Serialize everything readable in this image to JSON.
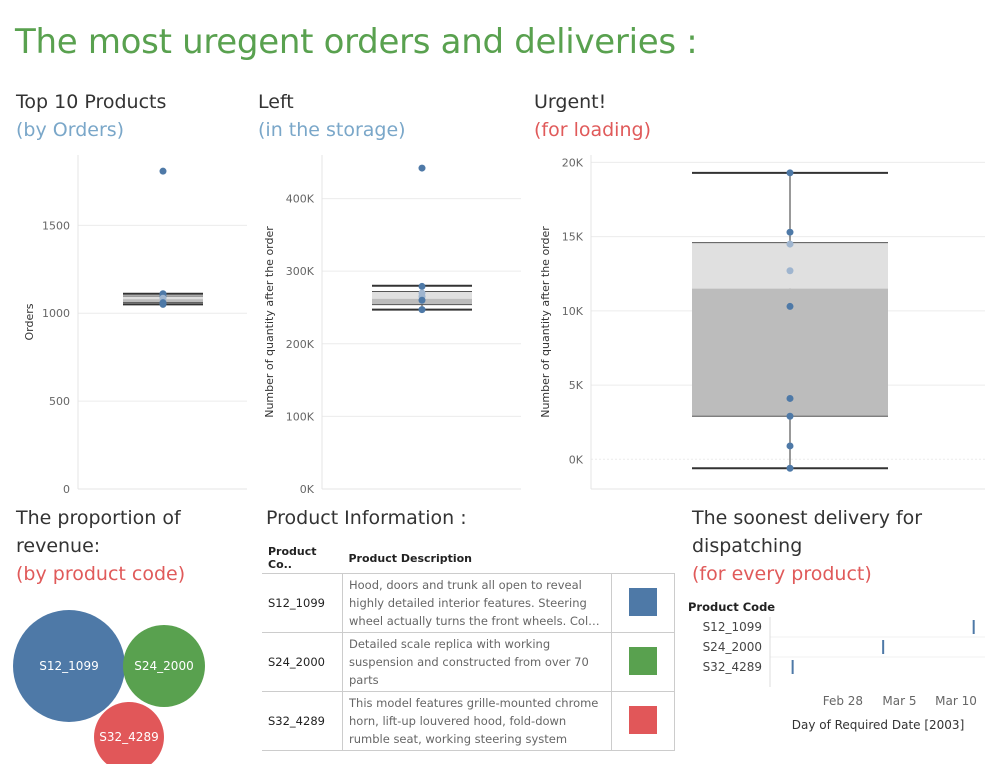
{
  "title": "The most uregent orders and deliveries :",
  "sections": {
    "top10": {
      "title": "Top 10 Products",
      "subtitle": "(by Orders)"
    },
    "left": {
      "title": "Left",
      "subtitle": "(in the storage)"
    },
    "urgent": {
      "title": "Urgent!",
      "subtitle": "(for loading)"
    },
    "proportion": {
      "title_line1": "The proportion of",
      "title_line2": "revenue:",
      "subtitle": "(by product code)"
    },
    "info": {
      "title": "Product Information :"
    },
    "soonest": {
      "title_line1": "The soonest delivery for",
      "title_line2": "dispatching",
      "subtitle": "(for every product)"
    }
  },
  "colors": {
    "title_green": "#59a14f",
    "sub_blue": "#7aa7c9",
    "sub_red": "#e05a5a",
    "point": "#4e79a7",
    "point_light": "#9fb5cf",
    "box_light": "#e0e0e0",
    "box_dark": "#bcbcbc"
  },
  "chart_data": [
    {
      "type": "box-plot",
      "name": "Top 10 Products (by Orders)",
      "ylabel": "Orders",
      "yticks": [
        "0",
        "500",
        "1000",
        "1500"
      ],
      "ylim": [
        0,
        1900
      ],
      "points": [
        1808,
        1111,
        1098,
        1085,
        1060,
        1050
      ],
      "box": {
        "min": 1050,
        "q1": 1060,
        "median": 1080,
        "q3": 1098,
        "max": 1111
      }
    },
    {
      "type": "box-plot",
      "name": "Left (in the storage)",
      "ylabel": "Number of quantity after the order",
      "yticks": [
        "0K",
        "100K",
        "200K",
        "300K",
        "400K"
      ],
      "ylim": [
        0,
        460000
      ],
      "points": [
        442000,
        279000,
        270000,
        265000,
        260000,
        247000
      ],
      "box": {
        "min": 247000,
        "q1": 254000,
        "median": 262000,
        "q3": 272000,
        "max": 280000
      }
    },
    {
      "type": "box-plot",
      "name": "Urgent! (for loading)",
      "ylabel": "Number of quantity after the order",
      "yticks": [
        "0K",
        "5K",
        "10K",
        "15K",
        "20K"
      ],
      "ylim": [
        -2000,
        20500
      ],
      "points": [
        19300,
        15300,
        14500,
        12700,
        10300,
        4100,
        2900,
        900,
        -600
      ],
      "box": {
        "min": -600,
        "q1": 2900,
        "median": 11500,
        "q3": 14600,
        "max": 19300
      }
    },
    {
      "type": "bubble",
      "name": "The proportion of revenue (by product code)",
      "bubbles": [
        {
          "label": "S12_1099",
          "color": "#4e79a7"
        },
        {
          "label": "S24_2000",
          "color": "#59a14f"
        },
        {
          "label": "S32_4289",
          "color": "#e15759"
        }
      ]
    },
    {
      "type": "gantt",
      "name": "The soonest delivery for dispatching",
      "y_header": "Product Code",
      "xlabel": "Day of Required Date [2003]",
      "xticks": [
        "Feb 28",
        "Mar 5",
        "Mar 10"
      ],
      "rows": [
        {
          "label": "S12_1099",
          "date": "2003-03-12"
        },
        {
          "label": "S24_2000",
          "date": "2003-03-04"
        },
        {
          "label": "S32_4289",
          "date": "2003-02-24"
        }
      ]
    }
  ],
  "product_table": {
    "headers": [
      "Product Co..",
      "Product Description"
    ],
    "rows": [
      {
        "code": "S12_1099",
        "desc": "Hood, doors and trunk all open to reveal highly detailed interior features. Steering wheel actually turns the front wheels. Color dark gr..",
        "color": "#4e79a7"
      },
      {
        "code": "S24_2000",
        "desc": "Detailed scale replica with working suspension and constructed from over 70 parts",
        "color": "#59a14f"
      },
      {
        "code": "S32_4289",
        "desc": "This model features grille-mounted chrome horn, lift-up louvered hood, fold-down rumble seat, working steering system",
        "color": "#e15759"
      }
    ]
  }
}
